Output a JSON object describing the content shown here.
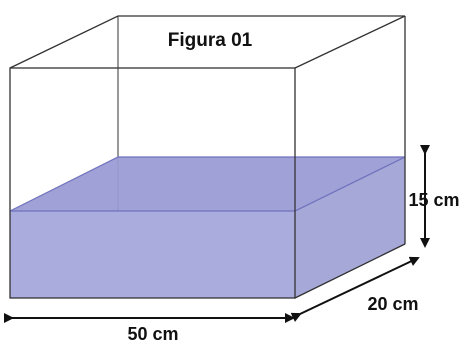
{
  "figure": {
    "title": "Figura 01",
    "dimensions": {
      "length_label": "50 cm",
      "depth_label": "20 cm",
      "water_height_label": "15 cm"
    },
    "colors": {
      "water_front": "#a9acdc",
      "water_side": "#a6a9d8",
      "water_top": "#9b9cd4",
      "water_edge": "#6f72bd",
      "edge": "#333333",
      "arrow": "#111111"
    }
  }
}
